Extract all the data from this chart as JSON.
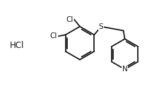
{
  "background_color": "#ffffff",
  "line_color": "#1a1a1a",
  "line_width": 1.3,
  "hcl_label": "HCl",
  "S_label": "S",
  "N_label": "N",
  "Cl1_label": "Cl",
  "Cl2_label": "Cl",
  "figsize": [
    2.25,
    1.29
  ],
  "dpi": 100,
  "font_size": 7.5
}
